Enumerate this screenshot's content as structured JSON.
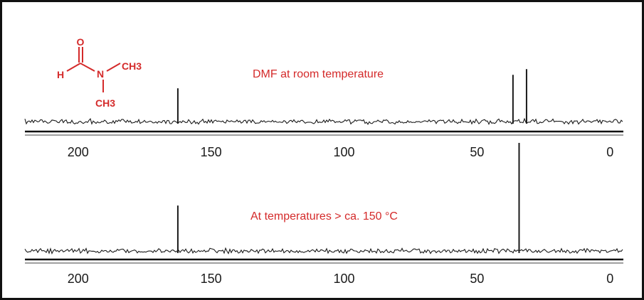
{
  "colors": {
    "annotation": "#d42a2a",
    "trace": "#1a1a1a",
    "frame": "#111111",
    "axis": "#666666"
  },
  "molecule": {
    "atoms": {
      "oxygen": "O",
      "hydrogen": "H",
      "nitrogen": "N",
      "methyl_upper": "CH3",
      "methyl_lower": "CH3"
    }
  },
  "chart_data": [
    {
      "type": "line",
      "annotation": "DMF at room temperature",
      "xlabel": "",
      "ylabel": "",
      "x_reversed": true,
      "xlim": [
        220,
        -5
      ],
      "x_ticks": [
        200,
        150,
        100,
        50,
        0
      ],
      "x_tick_labels": [
        "200",
        "150",
        "100",
        "50",
        "0"
      ],
      "grid": false,
      "series": [
        {
          "peaks": [
            {
              "x": 162.5,
              "height": 0.52
            },
            {
              "x": 36.5,
              "height": 0.73
            },
            {
              "x": 31.4,
              "height": 0.82
            }
          ]
        }
      ]
    },
    {
      "type": "line",
      "annotation": "At temperatures > ca. 150 °C",
      "xlabel": "",
      "ylabel": "",
      "x_reversed": true,
      "xlim": [
        220,
        -5
      ],
      "x_ticks": [
        200,
        150,
        100,
        50,
        0
      ],
      "x_tick_labels": [
        "200",
        "150",
        "100",
        "50",
        "0"
      ],
      "grid": false,
      "series": [
        {
          "peaks": [
            {
              "x": 162.5,
              "height": 0.42
            },
            {
              "x": 34.2,
              "height": 1.0
            }
          ]
        }
      ]
    }
  ]
}
